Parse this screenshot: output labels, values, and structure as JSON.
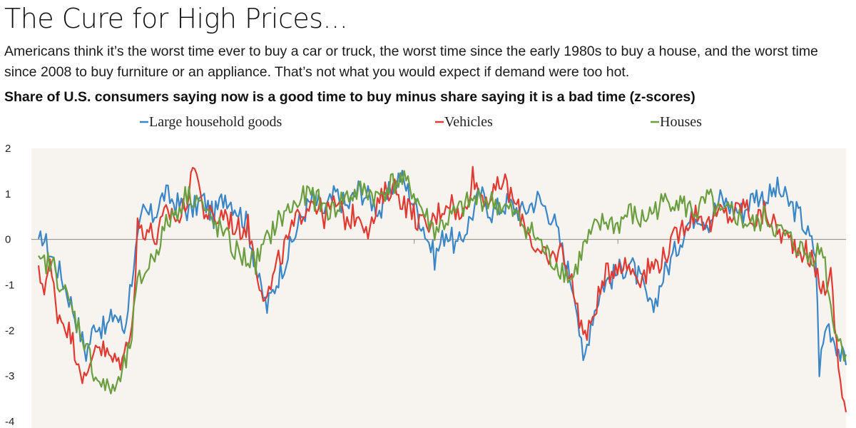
{
  "header": {
    "title": "The Cure for High Prices...",
    "subtitle": "Americans think it’s the worst time ever to buy a car or truck, the worst time since the early 1980s to buy a house, and the worst time since 2008 to buy furniture or an appliance. That’s not what you would expect if demand were too hot.",
    "chart_heading": "Share of U.S. consumers saying now is a good time to buy minus share saying it is a bad time (z-scores)"
  },
  "colors": {
    "plot_background": "#f7f4ef",
    "large_household_goods": "#3b86c6",
    "vehicles": "#e03a32",
    "houses": "#6a9e3f"
  },
  "chart_data": {
    "type": "line",
    "ylim": [
      -4,
      2
    ],
    "yticks": [
      "2",
      "1",
      "0",
      "-1",
      "-2",
      "-3",
      "-4"
    ],
    "legend_position": "top",
    "series": [
      {
        "name": "Large household goods",
        "color": "#3b86c6",
        "anchors": [
          [
            0,
            -0.2
          ],
          [
            2,
            0.1
          ],
          [
            6,
            -0.3
          ],
          [
            12,
            -0.8
          ],
          [
            18,
            -1.5
          ],
          [
            25,
            -2.5
          ],
          [
            30,
            -1.8
          ],
          [
            35,
            -2.0
          ],
          [
            40,
            -1.6
          ],
          [
            45,
            -2.0
          ],
          [
            50,
            -0.5
          ],
          [
            55,
            0.6
          ],
          [
            60,
            0.5
          ],
          [
            66,
            1.0
          ],
          [
            72,
            0.8
          ],
          [
            80,
            0.6
          ],
          [
            86,
            0.9
          ],
          [
            92,
            0.5
          ],
          [
            98,
            1.0
          ],
          [
            104,
            0.7
          ],
          [
            110,
            0.3
          ],
          [
            116,
            -1.0
          ],
          [
            120,
            -1.5
          ],
          [
            126,
            -0.8
          ],
          [
            132,
            -0.2
          ],
          [
            138,
            0.5
          ],
          [
            144,
            0.9
          ],
          [
            150,
            0.6
          ],
          [
            156,
            1.0
          ],
          [
            162,
            0.7
          ],
          [
            168,
            1.1
          ],
          [
            174,
            0.9
          ],
          [
            180,
            0.6
          ],
          [
            186,
            1.2
          ],
          [
            190,
            1.4
          ],
          [
            196,
            0.9
          ],
          [
            202,
            0.3
          ],
          [
            208,
            -0.4
          ],
          [
            214,
            0.2
          ],
          [
            220,
            -0.2
          ],
          [
            226,
            0.4
          ],
          [
            232,
            1.0
          ],
          [
            238,
            0.6
          ],
          [
            246,
            0.8
          ],
          [
            254,
            0.6
          ],
          [
            262,
            0.9
          ],
          [
            270,
            0.5
          ],
          [
            276,
            -0.4
          ],
          [
            282,
            -1.2
          ],
          [
            286,
            -2.8
          ],
          [
            290,
            -1.8
          ],
          [
            296,
            -1.0
          ],
          [
            302,
            -0.8
          ],
          [
            310,
            -0.5
          ],
          [
            316,
            -0.9
          ],
          [
            322,
            -1.6
          ],
          [
            328,
            -0.8
          ],
          [
            334,
            -0.3
          ],
          [
            340,
            0.3
          ],
          [
            346,
            0.6
          ],
          [
            352,
            0.4
          ],
          [
            358,
            0.9
          ],
          [
            364,
            0.7
          ],
          [
            370,
            0.6
          ],
          [
            376,
            1.0
          ],
          [
            382,
            0.9
          ],
          [
            388,
            1.1
          ],
          [
            394,
            0.8
          ],
          [
            400,
            0.5
          ],
          [
            404,
            0.1
          ],
          [
            408,
            -0.3
          ],
          [
            410,
            -2.8
          ],
          [
            414,
            -1.8
          ],
          [
            418,
            -2.2
          ],
          [
            424,
            -2.8
          ]
        ]
      },
      {
        "name": "Vehicles",
        "color": "#e03a32",
        "anchors": [
          [
            0,
            -0.8
          ],
          [
            3,
            -1.0
          ],
          [
            6,
            -0.6
          ],
          [
            10,
            -1.6
          ],
          [
            15,
            -1.9
          ],
          [
            20,
            -2.5
          ],
          [
            25,
            -3.2
          ],
          [
            30,
            -2.2
          ],
          [
            35,
            -2.5
          ],
          [
            40,
            -2.7
          ],
          [
            45,
            -2.6
          ],
          [
            50,
            -1.5
          ],
          [
            52,
            0.3
          ],
          [
            58,
            0.2
          ],
          [
            62,
            0.0
          ],
          [
            66,
            0.5
          ],
          [
            70,
            0.6
          ],
          [
            74,
            0.4
          ],
          [
            80,
            1.2
          ],
          [
            82,
            1.8
          ],
          [
            86,
            0.7
          ],
          [
            92,
            0.4
          ],
          [
            98,
            0.6
          ],
          [
            104,
            0.2
          ],
          [
            110,
            0.3
          ],
          [
            116,
            -0.9
          ],
          [
            120,
            -1.3
          ],
          [
            126,
            -0.5
          ],
          [
            132,
            0.1
          ],
          [
            138,
            0.6
          ],
          [
            144,
            0.9
          ],
          [
            150,
            0.5
          ],
          [
            156,
            0.8
          ],
          [
            162,
            0.4
          ],
          [
            168,
            0.6
          ],
          [
            174,
            0.2
          ],
          [
            180,
            0.9
          ],
          [
            186,
            1.2
          ],
          [
            192,
            0.8
          ],
          [
            198,
            0.5
          ],
          [
            204,
            0.2
          ],
          [
            210,
            0.6
          ],
          [
            216,
            0.9
          ],
          [
            222,
            0.4
          ],
          [
            228,
            1.4
          ],
          [
            232,
            1.0
          ],
          [
            238,
            0.9
          ],
          [
            244,
            1.3
          ],
          [
            250,
            0.8
          ],
          [
            256,
            0.3
          ],
          [
            262,
            -0.3
          ],
          [
            268,
            -0.5
          ],
          [
            274,
            -0.2
          ],
          [
            278,
            -0.6
          ],
          [
            284,
            -1.7
          ],
          [
            288,
            -2.2
          ],
          [
            292,
            -1.5
          ],
          [
            298,
            -0.8
          ],
          [
            304,
            -0.5
          ],
          [
            310,
            -0.6
          ],
          [
            316,
            -0.8
          ],
          [
            322,
            -0.6
          ],
          [
            328,
            -0.4
          ],
          [
            334,
            0.0
          ],
          [
            340,
            0.4
          ],
          [
            346,
            0.6
          ],
          [
            352,
            0.3
          ],
          [
            358,
            0.6
          ],
          [
            364,
            0.5
          ],
          [
            370,
            0.8
          ],
          [
            376,
            0.4
          ],
          [
            382,
            0.6
          ],
          [
            388,
            0.2
          ],
          [
            394,
            0.0
          ],
          [
            400,
            -0.2
          ],
          [
            404,
            -0.3
          ],
          [
            408,
            -0.7
          ],
          [
            412,
            -1.1
          ],
          [
            416,
            -0.8
          ],
          [
            420,
            -2.8
          ],
          [
            424,
            -3.8
          ]
        ]
      },
      {
        "name": "Houses",
        "color": "#6a9e3f",
        "anchors": [
          [
            0,
            -0.6
          ],
          [
            4,
            -0.5
          ],
          [
            8,
            -0.6
          ],
          [
            12,
            -1.0
          ],
          [
            18,
            -1.6
          ],
          [
            24,
            -2.2
          ],
          [
            30,
            -3.0
          ],
          [
            36,
            -3.3
          ],
          [
            42,
            -3.2
          ],
          [
            48,
            -2.4
          ],
          [
            52,
            -1.0
          ],
          [
            56,
            -0.7
          ],
          [
            60,
            -0.4
          ],
          [
            64,
            0.0
          ],
          [
            68,
            0.4
          ],
          [
            72,
            0.6
          ],
          [
            78,
            1.0
          ],
          [
            84,
            0.9
          ],
          [
            90,
            0.4
          ],
          [
            96,
            0.2
          ],
          [
            102,
            -0.2
          ],
          [
            108,
            -0.4
          ],
          [
            114,
            -0.5
          ],
          [
            118,
            -0.2
          ],
          [
            124,
            0.3
          ],
          [
            130,
            0.6
          ],
          [
            136,
            0.8
          ],
          [
            142,
            1.0
          ],
          [
            148,
            0.8
          ],
          [
            154,
            0.6
          ],
          [
            160,
            0.9
          ],
          [
            166,
            1.0
          ],
          [
            172,
            1.1
          ],
          [
            178,
            0.9
          ],
          [
            184,
            1.2
          ],
          [
            190,
            1.3
          ],
          [
            196,
            1.1
          ],
          [
            202,
            0.6
          ],
          [
            208,
            0.2
          ],
          [
            214,
            0.4
          ],
          [
            220,
            0.6
          ],
          [
            226,
            0.8
          ],
          [
            232,
            0.9
          ],
          [
            240,
            0.8
          ],
          [
            248,
            0.6
          ],
          [
            256,
            0.3
          ],
          [
            262,
            0.0
          ],
          [
            268,
            -0.4
          ],
          [
            274,
            -0.6
          ],
          [
            280,
            -0.9
          ],
          [
            286,
            -0.2
          ],
          [
            292,
            0.2
          ],
          [
            298,
            0.4
          ],
          [
            304,
            0.3
          ],
          [
            310,
            0.6
          ],
          [
            316,
            0.4
          ],
          [
            322,
            0.6
          ],
          [
            328,
            0.8
          ],
          [
            334,
            0.9
          ],
          [
            340,
            0.7
          ],
          [
            346,
            0.6
          ],
          [
            352,
            0.9
          ],
          [
            358,
            0.5
          ],
          [
            364,
            0.6
          ],
          [
            370,
            0.4
          ],
          [
            376,
            0.3
          ],
          [
            382,
            0.5
          ],
          [
            388,
            0.2
          ],
          [
            394,
            0.0
          ],
          [
            400,
            -0.2
          ],
          [
            404,
            -0.4
          ],
          [
            408,
            -0.3
          ],
          [
            412,
            -0.2
          ],
          [
            416,
            -1.5
          ],
          [
            420,
            -2.2
          ],
          [
            424,
            -2.5
          ]
        ]
      }
    ]
  }
}
